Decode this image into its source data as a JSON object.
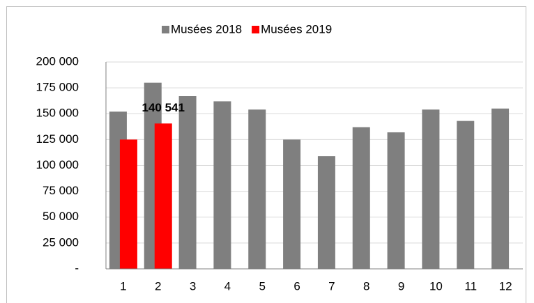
{
  "chart_data": {
    "type": "bar",
    "categories": [
      "1",
      "2",
      "3",
      "4",
      "5",
      "6",
      "7",
      "8",
      "9",
      "10",
      "11",
      "12"
    ],
    "series": [
      {
        "name": "Musées 2018",
        "color": "#7f7f7f",
        "values": [
          152000,
          180000,
          167000,
          162000,
          154000,
          125000,
          109000,
          137000,
          132000,
          154000,
          143000,
          155000
        ]
      },
      {
        "name": "Musées 2019",
        "color": "#ff0000",
        "values": [
          125000,
          140541,
          null,
          null,
          null,
          null,
          null,
          null,
          null,
          null,
          null,
          null
        ],
        "value_labels": [
          null,
          "140 541",
          null,
          null,
          null,
          null,
          null,
          null,
          null,
          null,
          null,
          null
        ]
      }
    ],
    "ylim": [
      0,
      200000
    ],
    "yticks": [
      {
        "value": 0,
        "label": "-"
      },
      {
        "value": 25000,
        "label": "25 000"
      },
      {
        "value": 50000,
        "label": "50 000"
      },
      {
        "value": 75000,
        "label": "75 000"
      },
      {
        "value": 100000,
        "label": "100 000"
      },
      {
        "value": 125000,
        "label": "125 000"
      },
      {
        "value": 150000,
        "label": "150 000"
      },
      {
        "value": 175000,
        "label": "175 000"
      },
      {
        "value": 200000,
        "label": "200 000"
      }
    ],
    "grid": true,
    "legend": "top"
  }
}
